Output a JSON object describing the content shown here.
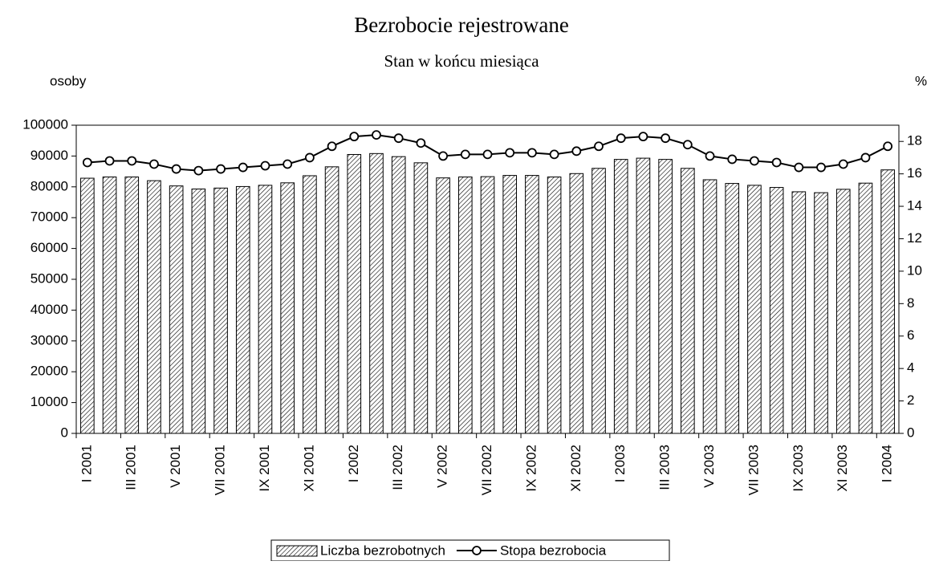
{
  "chart_data": {
    "type": "bar_line",
    "title": "Bezrobocie rejestrowane",
    "subtitle": "Stan w końcu miesiąca",
    "ylabel": "osoby",
    "y2label": "%",
    "categories": [
      "I 2001",
      null,
      "III 2001",
      null,
      "V 2001",
      null,
      "VII 2001",
      null,
      "IX 2001",
      null,
      "XI 2001",
      null,
      "I 2002",
      null,
      "III 2002",
      null,
      "V 2002",
      null,
      "VII 2002",
      null,
      "IX 2002",
      null,
      "XI 2002",
      null,
      "I 2003",
      null,
      "III 2003",
      null,
      "V 2003",
      null,
      "VII 2003",
      null,
      "IX 2003",
      null,
      "XI 2003",
      null,
      "I 2004"
    ],
    "series": [
      {
        "name": "Liczba bezrobotnych",
        "type": "bar",
        "color": "#000000",
        "values": [
          82800,
          83200,
          83200,
          82000,
          80300,
          79300,
          79600,
          80100,
          80500,
          81300,
          83600,
          86500,
          90500,
          90800,
          89800,
          87800,
          82900,
          83200,
          83300,
          83700,
          83700,
          83200,
          84300,
          86000,
          88900,
          89300,
          88900,
          86000,
          82300,
          81100,
          80500,
          79800,
          78400,
          78100,
          79200,
          81200,
          85500
        ]
      },
      {
        "name": "Stopa bezrobocia",
        "type": "line",
        "axis": "y2",
        "color": "#000000",
        "values": [
          16.7,
          16.8,
          16.8,
          16.6,
          16.3,
          16.2,
          16.3,
          16.4,
          16.5,
          16.6,
          17.0,
          17.7,
          18.3,
          18.4,
          18.2,
          17.9,
          17.1,
          17.2,
          17.2,
          17.3,
          17.3,
          17.2,
          17.4,
          17.7,
          18.2,
          18.3,
          18.2,
          17.8,
          17.1,
          16.9,
          16.8,
          16.7,
          16.4,
          16.4,
          16.6,
          17.0,
          17.7
        ]
      }
    ],
    "ylim": [
      0,
      100000
    ],
    "yticks": [
      0,
      10000,
      20000,
      30000,
      40000,
      50000,
      60000,
      70000,
      80000,
      90000,
      100000
    ],
    "y2lim": [
      0,
      19
    ],
    "y2ticks": [
      0,
      2,
      4,
      6,
      8,
      10,
      12,
      14,
      16,
      18
    ],
    "legend": "bottom"
  }
}
